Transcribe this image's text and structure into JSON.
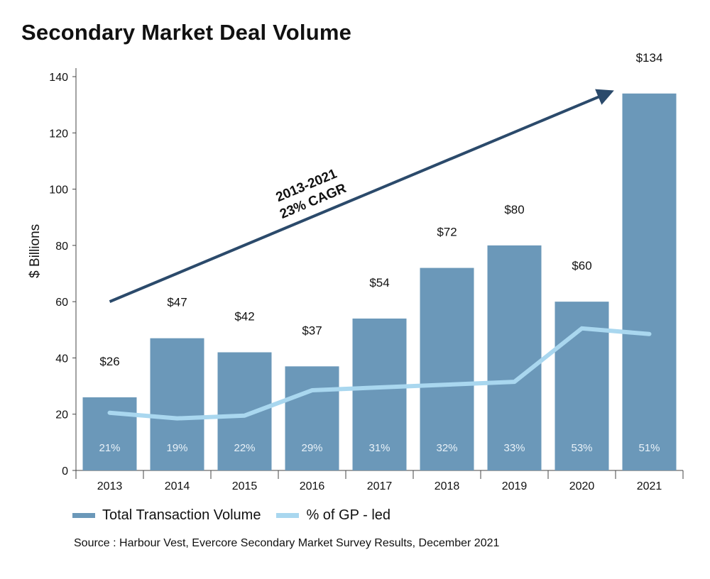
{
  "chart_data": {
    "type": "bar",
    "title": "Secondary Market Deal Volume",
    "ylabel": "$ Billions",
    "xlabel": "",
    "ylim": [
      0,
      140
    ],
    "yticks": [
      0,
      20,
      40,
      60,
      80,
      100,
      120,
      140
    ],
    "categories": [
      "2013",
      "2014",
      "2015",
      "2016",
      "2017",
      "2018",
      "2019",
      "2020",
      "2021"
    ],
    "series": [
      {
        "name": "Total Transaction Volume",
        "kind": "bar",
        "color": "#6b98b9",
        "values": [
          26,
          47,
          42,
          37,
          54,
          72,
          80,
          60,
          134
        ],
        "labels": [
          "$26",
          "$47",
          "$42",
          "$37",
          "$54",
          "$72",
          "$80",
          "$60",
          "$134"
        ]
      },
      {
        "name": "% of GP - led",
        "kind": "line",
        "color": "#a9d7ef",
        "values": [
          21,
          19,
          22,
          29,
          31,
          32,
          33,
          53,
          51
        ],
        "labels": [
          "21%",
          "19%",
          "22%",
          "29%",
          "31%",
          "32%",
          "33%",
          "53%",
          "51%"
        ],
        "plotted_on_axis_values": [
          20.5,
          18.5,
          19.5,
          28.5,
          29.5,
          30.5,
          31.5,
          50.5,
          48.5
        ]
      }
    ],
    "annotation": {
      "lines": [
        "2013-2021",
        "23% CAGR"
      ],
      "arrow_from": {
        "category": "2013",
        "value": 60
      },
      "arrow_to": {
        "category": "2021",
        "value": 134
      },
      "color": "#2b4a6b"
    },
    "legend": "bottom-left"
  },
  "source": "Source : Harbour Vest, Evercore Secondary Market Survey Results, December 2021"
}
